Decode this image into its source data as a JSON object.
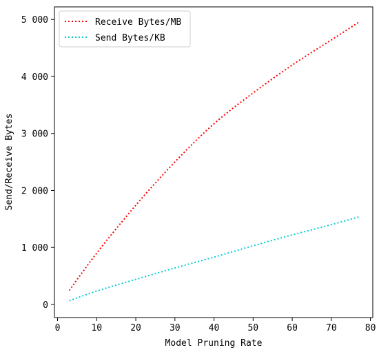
{
  "chart_data": {
    "type": "line",
    "title": "",
    "xlabel": "Model Pruning Rate",
    "ylabel": "Send/Receive Bytes",
    "xlim": [
      -0.8,
      80.6
    ],
    "ylim": [
      -230,
      5220
    ],
    "xticks": [
      0,
      10,
      20,
      30,
      40,
      50,
      60,
      70,
      80
    ],
    "xtick_labels": [
      "0",
      "10",
      "20",
      "30",
      "40",
      "50",
      "60",
      "70",
      "80"
    ],
    "yticks": [
      0,
      1000,
      2000,
      3000,
      4000,
      5000
    ],
    "ytick_labels": [
      "0",
      "1 000",
      "2 000",
      "3 000",
      "4 000",
      "5 000"
    ],
    "grid": false,
    "legend_position": "top-left",
    "series": [
      {
        "name": "Receive Bytes/MB",
        "color": "#ff0000",
        "style": "dotted",
        "x": [
          3,
          10,
          20,
          30,
          40,
          50,
          60,
          70,
          77
        ],
        "y": [
          245,
          900,
          1740,
          2500,
          3170,
          3710,
          4200,
          4640,
          4950
        ]
      },
      {
        "name": "Send Bytes/KB",
        "color": "#00ced1",
        "style": "dotted",
        "x": [
          3,
          10,
          20,
          30,
          40,
          50,
          60,
          70,
          77
        ],
        "y": [
          65,
          235,
          440,
          640,
          830,
          1030,
          1220,
          1400,
          1535
        ]
      }
    ]
  }
}
